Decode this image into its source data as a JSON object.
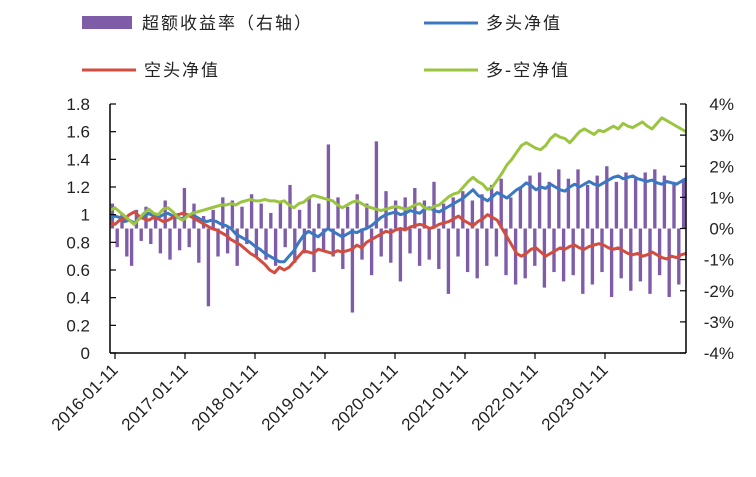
{
  "chart_data": {
    "type": "line",
    "title": "",
    "series": [
      {
        "name": "超额收益率（右轴）",
        "kind": "bar",
        "axis": "right",
        "color": "#7e5ca8",
        "values": [
          0.8,
          -0.6,
          0.5,
          -0.9,
          -1.2,
          0.6,
          -0.4,
          0.7,
          -0.5,
          0.3,
          -0.8,
          0.9,
          -1.0,
          0.5,
          -0.7,
          1.3,
          -0.6,
          0.8,
          -1.1,
          0.4,
          -2.5,
          0.6,
          -0.9,
          1.0,
          -0.8,
          0.9,
          -1.2,
          0.7,
          -0.5,
          1.1,
          -0.9,
          0.8,
          -1.0,
          0.5,
          -1.2,
          0.9,
          -0.6,
          1.4,
          -1.1,
          0.6,
          -0.8,
          1.0,
          -1.4,
          0.8,
          -0.7,
          2.7,
          -0.9,
          1.0,
          -1.3,
          0.7,
          -2.7,
          1.1,
          -1.0,
          0.8,
          -1.5,
          2.8,
          -0.9,
          1.2,
          -1.1,
          0.9,
          -1.7,
          1.0,
          -0.8,
          1.3,
          -1.2,
          0.9,
          -1.0,
          1.5,
          -1.3,
          0.8,
          -2.1,
          1.0,
          -0.9,
          1.2,
          -1.4,
          0.9,
          -1.6,
          1.1,
          -1.2,
          1.4,
          -0.9,
          1.6,
          -1.5,
          1.0,
          -1.8,
          1.3,
          -1.6,
          1.7,
          -1.2,
          1.8,
          -1.9,
          1.5,
          -1.4,
          1.9,
          -1.7,
          1.6,
          -1.5,
          1.9,
          -2.1,
          1.4,
          -1.8,
          1.7,
          -1.4,
          2.0,
          -2.2,
          1.5,
          -1.6,
          1.8,
          -2.0,
          1.6,
          -1.7,
          1.8,
          -2.1,
          1.9,
          -1.5,
          1.7,
          -2.2,
          1.5,
          -1.8,
          1.6
        ]
      },
      {
        "name": "多头净值",
        "kind": "line",
        "axis": "left",
        "color": "#3b78c2",
        "values": [
          0.97,
          0.99,
          0.98,
          0.95,
          0.96,
          0.94,
          0.97,
          0.99,
          1.01,
          0.99,
          0.98,
          1.0,
          1.01,
          0.99,
          0.98,
          0.97,
          0.99,
          1.0,
          0.98,
          0.96,
          0.95,
          0.96,
          0.95,
          0.93,
          0.92,
          0.9,
          0.86,
          0.84,
          0.82,
          0.8,
          0.77,
          0.75,
          0.72,
          0.7,
          0.68,
          0.66,
          0.66,
          0.7,
          0.74,
          0.8,
          0.85,
          0.88,
          0.86,
          0.84,
          0.87,
          0.9,
          0.88,
          0.86,
          0.84,
          0.86,
          0.88,
          0.87,
          0.89,
          0.9,
          0.92,
          0.95,
          0.98,
          1.0,
          1.01,
          1.02,
          1.0,
          1.01,
          1.03,
          1.02,
          1.01,
          1.04,
          1.05,
          1.03,
          1.02,
          1.04,
          1.06,
          1.08,
          1.1,
          1.12,
          1.15,
          1.18,
          1.14,
          1.12,
          1.1,
          1.13,
          1.16,
          1.14,
          1.12,
          1.15,
          1.18,
          1.2,
          1.23,
          1.21,
          1.18,
          1.2,
          1.19,
          1.22,
          1.2,
          1.18,
          1.17,
          1.2,
          1.22,
          1.2,
          1.22,
          1.24,
          1.22,
          1.21,
          1.23,
          1.25,
          1.27,
          1.28,
          1.26,
          1.27,
          1.28,
          1.26,
          1.25,
          1.24,
          1.25,
          1.23,
          1.22,
          1.24,
          1.23,
          1.22,
          1.24,
          1.26
        ]
      },
      {
        "name": "空头净值",
        "kind": "line",
        "axis": "left",
        "color": "#d24d3f",
        "values": [
          0.94,
          0.93,
          0.96,
          0.97,
          1.0,
          1.02,
          0.99,
          0.97,
          0.96,
          0.98,
          0.97,
          0.95,
          0.96,
          0.98,
          1.0,
          1.01,
          1.0,
          0.98,
          0.96,
          0.94,
          0.92,
          0.9,
          0.89,
          0.87,
          0.85,
          0.82,
          0.8,
          0.78,
          0.75,
          0.72,
          0.7,
          0.67,
          0.64,
          0.6,
          0.58,
          0.62,
          0.6,
          0.62,
          0.66,
          0.7,
          0.74,
          0.73,
          0.72,
          0.75,
          0.74,
          0.73,
          0.72,
          0.74,
          0.73,
          0.74,
          0.75,
          0.78,
          0.76,
          0.8,
          0.82,
          0.84,
          0.86,
          0.88,
          0.87,
          0.89,
          0.9,
          0.89,
          0.91,
          0.92,
          0.93,
          0.92,
          0.9,
          0.91,
          0.93,
          0.94,
          0.95,
          0.97,
          0.99,
          0.96,
          0.94,
          0.92,
          0.95,
          0.97,
          1.0,
          0.98,
          0.96,
          0.9,
          0.84,
          0.78,
          0.72,
          0.7,
          0.72,
          0.75,
          0.76,
          0.73,
          0.7,
          0.72,
          0.74,
          0.76,
          0.75,
          0.77,
          0.78,
          0.76,
          0.75,
          0.77,
          0.78,
          0.79,
          0.78,
          0.76,
          0.75,
          0.76,
          0.74,
          0.72,
          0.71,
          0.72,
          0.7,
          0.71,
          0.73,
          0.71,
          0.69,
          0.68,
          0.7,
          0.69,
          0.71,
          0.72
        ]
      },
      {
        "name": "多-空净值",
        "kind": "line",
        "axis": "left",
        "color": "#9bc541",
        "values": [
          1.03,
          1.05,
          1.02,
          0.99,
          0.96,
          0.93,
          0.97,
          1.01,
          1.04,
          1.01,
          1.0,
          1.04,
          1.05,
          1.02,
          0.98,
          0.96,
          0.99,
          1.01,
          1.02,
          1.03,
          1.04,
          1.05,
          1.06,
          1.07,
          1.07,
          1.08,
          1.07,
          1.09,
          1.1,
          1.11,
          1.1,
          1.1,
          1.11,
          1.1,
          1.1,
          1.09,
          1.1,
          1.07,
          1.05,
          1.08,
          1.09,
          1.12,
          1.14,
          1.13,
          1.12,
          1.11,
          1.1,
          1.07,
          1.05,
          1.07,
          1.09,
          1.1,
          1.08,
          1.06,
          1.05,
          1.04,
          1.03,
          1.04,
          1.05,
          1.06,
          1.05,
          1.04,
          1.05,
          1.07,
          1.08,
          1.05,
          1.04,
          1.06,
          1.07,
          1.1,
          1.13,
          1.15,
          1.16,
          1.2,
          1.24,
          1.27,
          1.24,
          1.22,
          1.18,
          1.2,
          1.25,
          1.3,
          1.36,
          1.4,
          1.45,
          1.5,
          1.52,
          1.5,
          1.48,
          1.47,
          1.5,
          1.55,
          1.58,
          1.56,
          1.55,
          1.52,
          1.56,
          1.6,
          1.62,
          1.6,
          1.58,
          1.61,
          1.6,
          1.62,
          1.64,
          1.62,
          1.66,
          1.64,
          1.63,
          1.65,
          1.67,
          1.64,
          1.62,
          1.66,
          1.7,
          1.68,
          1.66,
          1.64,
          1.62,
          1.6
        ]
      }
    ],
    "y_left": {
      "ticks": [
        "0",
        "0.2",
        "0.4",
        "0.6",
        "0.8",
        "1",
        "1.2",
        "1.4",
        "1.6",
        "1.8"
      ],
      "ylim": [
        0,
        1.8
      ]
    },
    "y_right": {
      "ticks": [
        "-4%",
        "-3%",
        "-2%",
        "-1%",
        "0%",
        "1%",
        "2%",
        "3%",
        "4%"
      ],
      "ylim": [
        -4,
        4
      ]
    },
    "x_ticks": [
      "2016-01-11",
      "2017-01-11",
      "2018-01-11",
      "2019-01-11",
      "2020-01-11",
      "2021-01-11",
      "2022-01-11",
      "2023-01-11"
    ],
    "legend_position": "top",
    "grid": false
  }
}
